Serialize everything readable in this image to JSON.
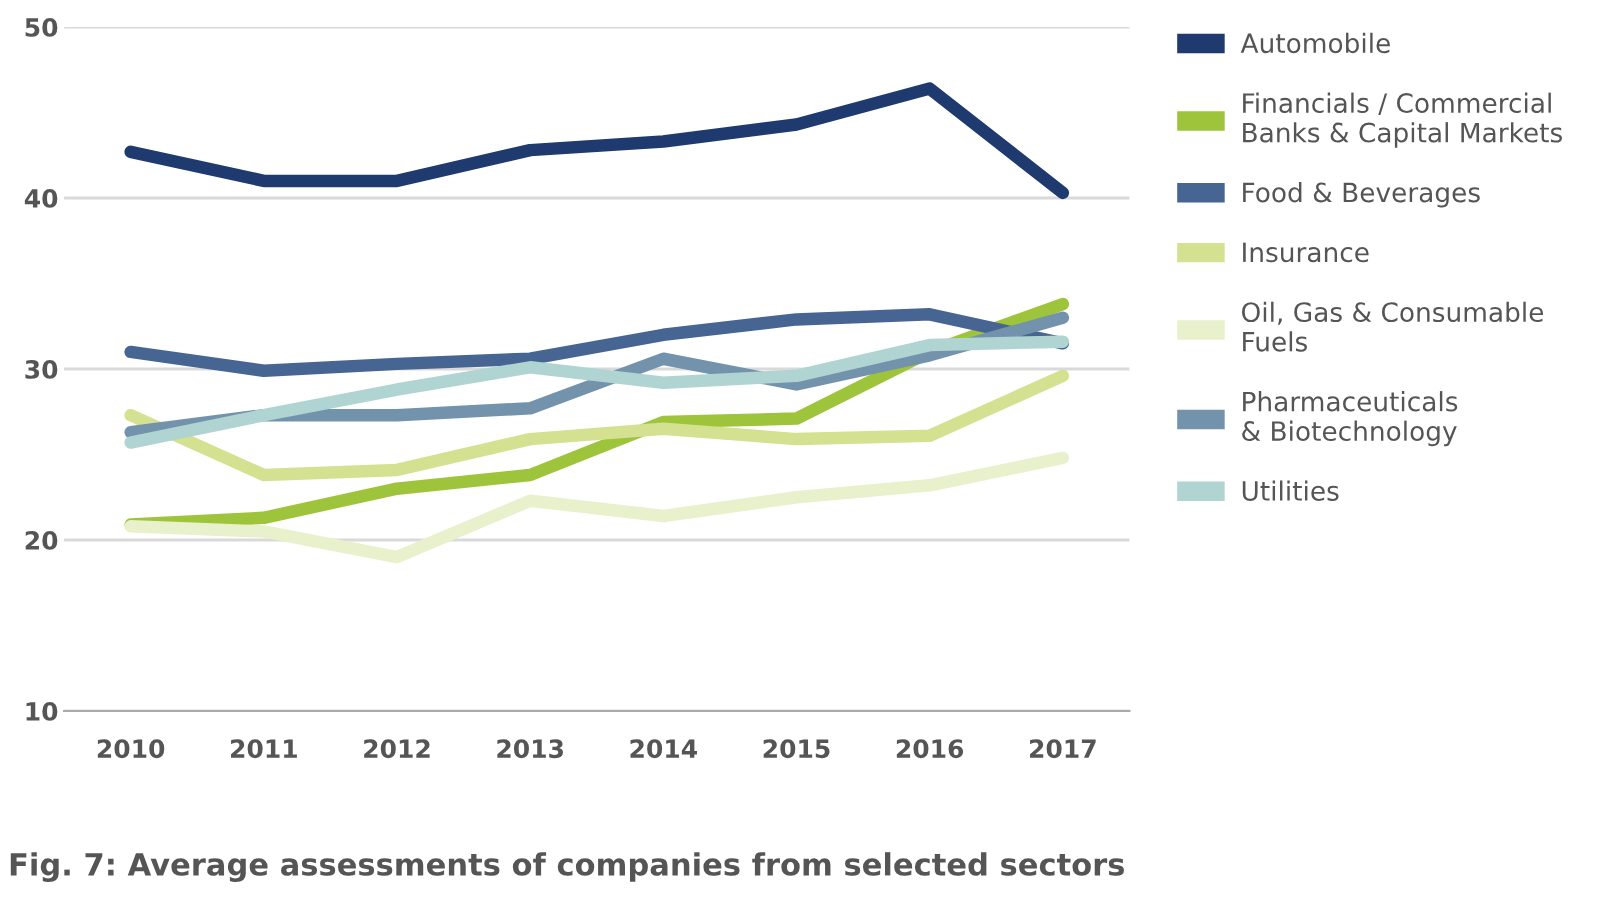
{
  "chart_data": {
    "type": "line",
    "title": "Fig. 7: Average assessments of companies from selected sectors",
    "categories": [
      "2010",
      "2011",
      "2012",
      "2013",
      "2014",
      "2015",
      "2016",
      "2017"
    ],
    "series": [
      {
        "name": "Automobile",
        "color": "#1f3a6e",
        "values": [
          42.7,
          41.0,
          41.0,
          42.8,
          43.3,
          44.3,
          46.4,
          40.3
        ]
      },
      {
        "name": "Financials / Commercial\nBanks & Capital Markets",
        "color": "#9dc43a",
        "values": [
          20.9,
          21.3,
          23.0,
          23.8,
          26.9,
          27.1,
          31.0,
          33.8
        ]
      },
      {
        "name": "Food & Beverages",
        "color": "#466592",
        "values": [
          31.0,
          29.9,
          30.3,
          30.6,
          32.0,
          32.9,
          33.2,
          31.5
        ]
      },
      {
        "name": "Insurance",
        "color": "#d3e191",
        "values": [
          27.3,
          23.8,
          24.1,
          25.9,
          26.5,
          25.9,
          26.1,
          29.6
        ]
      },
      {
        "name": "Oil, Gas & Consumable\nFuels",
        "color": "#e8f0cc",
        "values": [
          20.8,
          20.5,
          19.0,
          22.3,
          21.4,
          22.5,
          23.2,
          24.8
        ]
      },
      {
        "name": "Pharmaceuticals\n& Biotechnology",
        "color": "#7393ad",
        "values": [
          26.3,
          27.3,
          27.3,
          27.7,
          30.6,
          29.1,
          30.8,
          33.0
        ]
      },
      {
        "name": "Utilities",
        "color": "#b0d4d2",
        "values": [
          25.7,
          27.3,
          28.8,
          30.1,
          29.2,
          29.6,
          31.4,
          31.6
        ]
      }
    ],
    "ylim": [
      10,
      50
    ],
    "yticks": [
      10,
      20,
      30,
      40,
      50
    ],
    "grid": "y",
    "legend": "right"
  }
}
